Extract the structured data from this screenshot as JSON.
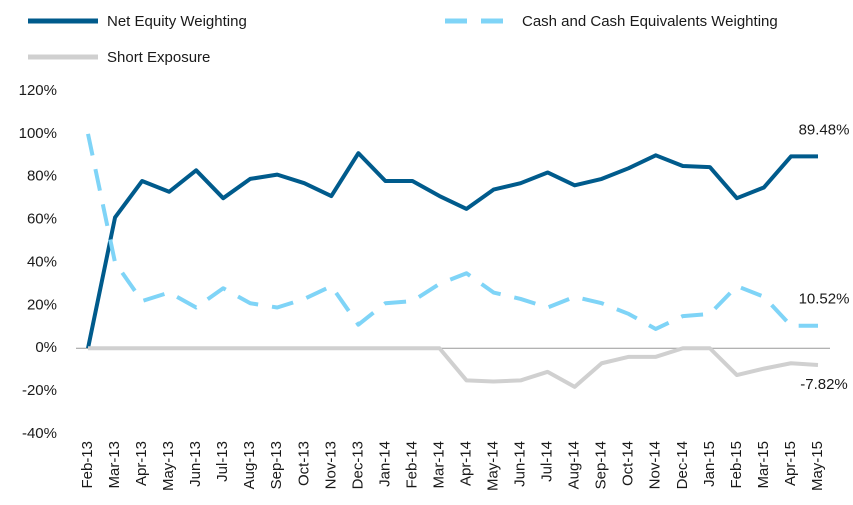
{
  "chart_data": {
    "type": "line",
    "categories": [
      "Feb-13",
      "Mar-13",
      "Apr-13",
      "May-13",
      "Jun-13",
      "Jul-13",
      "Aug-13",
      "Sep-13",
      "Oct-13",
      "Nov-13",
      "Dec-13",
      "Jan-14",
      "Feb-14",
      "Mar-14",
      "Apr-14",
      "May-14",
      "Jun-14",
      "Jul-14",
      "Aug-14",
      "Sep-14",
      "Oct-14",
      "Nov-14",
      "Dec-14",
      "Jan-15",
      "Feb-15",
      "Mar-15",
      "Apr-15",
      "May-15"
    ],
    "series": [
      {
        "name": "Net Equity Weighting",
        "color": "#005b8c",
        "dash": false,
        "values": [
          0,
          61,
          78,
          73,
          83,
          70,
          79,
          81,
          77,
          71,
          91,
          78,
          78,
          71,
          65,
          74,
          77,
          82,
          76,
          79,
          84,
          90,
          85,
          84.5,
          70,
          75,
          89.48,
          89.48
        ],
        "value_labels": [
          null,
          null,
          null,
          null,
          null,
          null,
          null,
          null,
          null,
          null,
          null,
          null,
          null,
          null,
          null,
          null,
          null,
          null,
          null,
          null,
          null,
          null,
          null,
          null,
          null,
          null,
          null,
          "89.48%"
        ]
      },
      {
        "name": "Cash and Cash Equivalents Weighting",
        "color": "#7fd4f7",
        "dash": true,
        "values": [
          100,
          40,
          22,
          26,
          19,
          28,
          21,
          19,
          23,
          29,
          11,
          21,
          22,
          30,
          35,
          26,
          23,
          19,
          24,
          21,
          16,
          9,
          15,
          16,
          29,
          24,
          10.52,
          10.52
        ],
        "value_labels": [
          null,
          null,
          null,
          null,
          null,
          null,
          null,
          null,
          null,
          null,
          null,
          null,
          null,
          null,
          null,
          null,
          null,
          null,
          null,
          null,
          null,
          null,
          null,
          null,
          null,
          null,
          null,
          "10.52%"
        ]
      },
      {
        "name": "Short Exposure",
        "color": "#d0d0d0",
        "dash": false,
        "values": [
          0,
          0,
          0,
          0,
          0,
          0,
          0,
          0,
          0,
          0,
          0,
          0,
          0,
          0,
          -15,
          -15.5,
          -15,
          -11,
          -18,
          -7,
          -4,
          -4,
          0,
          0,
          -12.5,
          -9.5,
          -7,
          -7.82
        ],
        "value_labels": [
          null,
          null,
          null,
          null,
          null,
          null,
          null,
          null,
          null,
          null,
          null,
          null,
          null,
          null,
          null,
          null,
          null,
          null,
          null,
          null,
          null,
          null,
          null,
          null,
          null,
          null,
          null,
          "-7.82%"
        ]
      }
    ],
    "ylim": [
      -40,
      120
    ],
    "yticks": [
      {
        "value": -40,
        "label": "-40%"
      },
      {
        "value": -20,
        "label": "-20%"
      },
      {
        "value": 0,
        "label": "0%"
      },
      {
        "value": 20,
        "label": "20%"
      },
      {
        "value": 40,
        "label": "40%"
      },
      {
        "value": 60,
        "label": "60%"
      },
      {
        "value": 80,
        "label": "80%"
      },
      {
        "value": 100,
        "label": "100%"
      },
      {
        "value": 120,
        "label": "120%"
      }
    ],
    "grid": false,
    "legend": "top"
  }
}
